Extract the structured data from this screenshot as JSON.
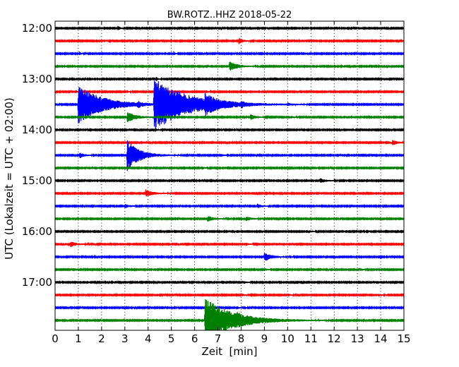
{
  "chart_data": {
    "type": "line",
    "title": "BW.ROTZ..HHZ 2018-05-22",
    "xlabel": "Zeit  [min]",
    "ylabel": "UTC (Lokalzeit = UTC + 02:00)",
    "xlim": [
      0,
      15
    ],
    "xticks": [
      "0",
      "1",
      "2",
      "3",
      "4",
      "5",
      "6",
      "7",
      "8",
      "9",
      "10",
      "11",
      "12",
      "13",
      "14",
      "15"
    ],
    "y_tick_labels": [
      {
        "label": "12:00",
        "row": 0
      },
      {
        "label": "13:00",
        "row": 4
      },
      {
        "label": "14:00",
        "row": 8
      },
      {
        "label": "15:00",
        "row": 12
      },
      {
        "label": "16:00",
        "row": 16
      },
      {
        "label": "17:00",
        "row": 20
      }
    ],
    "grid": true,
    "trace_minutes": 15,
    "colors": [
      "#000000",
      "#ff0000",
      "#0000ff",
      "#008000"
    ],
    "noise_amplitude": 0.7,
    "series": [
      {
        "start": "12:00",
        "events": [
          {
            "t": 2.7,
            "amp": 3,
            "dur": 0.15
          }
        ]
      },
      {
        "start": "12:15",
        "events": [
          {
            "t": 2.1,
            "amp": 2,
            "dur": 0.1
          },
          {
            "t": 7.9,
            "amp": 4,
            "dur": 0.3
          }
        ]
      },
      {
        "start": "12:30",
        "events": [
          {
            "t": 1.05,
            "amp": 3,
            "dur": 0.1
          },
          {
            "t": 5.1,
            "amp": 3,
            "dur": 0.1
          }
        ]
      },
      {
        "start": "12:45",
        "events": [
          {
            "t": 7.5,
            "amp": 7,
            "dur": 0.5
          }
        ]
      },
      {
        "start": "13:00",
        "events": [
          {
            "t": 4.35,
            "amp": 3,
            "dur": 0.1
          }
        ]
      },
      {
        "start": "13:15",
        "events": [
          {
            "t": 0.9,
            "amp": 2,
            "dur": 0.1
          },
          {
            "t": 3.1,
            "amp": 2,
            "dur": 0.1
          },
          {
            "t": 6.5,
            "amp": 2,
            "dur": 0.1
          }
        ]
      },
      {
        "start": "13:30",
        "events": [
          {
            "t": 1.0,
            "amp": 28,
            "dur": 1.6
          },
          {
            "t": 4.25,
            "amp": 38,
            "dur": 2.2
          },
          {
            "t": 6.45,
            "amp": 9,
            "dur": 0.7
          },
          {
            "t": 3.55,
            "amp": 4,
            "dur": 0.2
          },
          {
            "t": 8.0,
            "amp": 3,
            "dur": 0.2
          },
          {
            "t": 10.0,
            "amp": 2,
            "dur": 0.2
          }
        ]
      },
      {
        "start": "13:45",
        "events": [
          {
            "t": 3.1,
            "amp": 7,
            "dur": 0.6
          },
          {
            "t": 8.4,
            "amp": 4,
            "dur": 0.3
          },
          {
            "t": 10.1,
            "amp": 2,
            "dur": 0.2
          }
        ]
      },
      {
        "start": "14:00",
        "events": [
          {
            "t": 4.3,
            "amp": 3,
            "dur": 0.1
          }
        ]
      },
      {
        "start": "14:15",
        "events": [
          {
            "t": 14.5,
            "amp": 4,
            "dur": 0.3
          }
        ]
      },
      {
        "start": "14:30",
        "events": [
          {
            "t": 1.05,
            "amp": 4,
            "dur": 0.3
          },
          {
            "t": 3.1,
            "amp": 22,
            "dur": 0.8
          },
          {
            "t": 7.1,
            "amp": 2,
            "dur": 0.2
          }
        ]
      },
      {
        "start": "14:45",
        "events": [
          {
            "t": 6.3,
            "amp": 2,
            "dur": 0.2
          }
        ]
      },
      {
        "start": "15:00",
        "events": [
          {
            "t": 11.4,
            "amp": 3,
            "dur": 0.4
          }
        ]
      },
      {
        "start": "15:15",
        "events": [
          {
            "t": 3.9,
            "amp": 5,
            "dur": 0.5
          }
        ]
      },
      {
        "start": "15:30",
        "events": [
          {
            "t": 3.0,
            "amp": 3,
            "dur": 0.3
          },
          {
            "t": 8.7,
            "amp": 3,
            "dur": 0.3
          }
        ]
      },
      {
        "start": "15:45",
        "events": [
          {
            "t": 6.55,
            "amp": 4,
            "dur": 0.4
          },
          {
            "t": 8.2,
            "amp": 3,
            "dur": 0.4
          }
        ]
      },
      {
        "start": "16:00",
        "events": [
          {
            "t": 10.9,
            "amp": 2,
            "dur": 0.2
          }
        ]
      },
      {
        "start": "16:15",
        "events": [
          {
            "t": 0.65,
            "amp": 4,
            "dur": 0.4
          },
          {
            "t": 8.2,
            "amp": 2,
            "dur": 0.2
          }
        ]
      },
      {
        "start": "16:30",
        "events": [
          {
            "t": 9.0,
            "amp": 6,
            "dur": 0.5
          }
        ]
      },
      {
        "start": "16:45",
        "events": [
          {
            "t": 9.0,
            "amp": 2,
            "dur": 0.2
          },
          {
            "t": 13.1,
            "amp": 2,
            "dur": 0.2
          }
        ]
      },
      {
        "start": "17:00",
        "events": [
          {
            "t": 8.1,
            "amp": 2,
            "dur": 0.2
          }
        ]
      },
      {
        "start": "17:15",
        "events": [
          {
            "t": 8.0,
            "amp": 2,
            "dur": 0.2
          },
          {
            "t": 10.0,
            "amp": 2,
            "dur": 0.2
          },
          {
            "t": 13.9,
            "amp": 2,
            "dur": 0.2
          }
        ]
      },
      {
        "start": "17:30",
        "events": [
          {
            "t": 7.8,
            "amp": 2,
            "dur": 0.2
          }
        ]
      },
      {
        "start": "17:45",
        "events": [
          {
            "t": 6.45,
            "amp": 32,
            "dur": 1.8
          },
          {
            "t": 7.8,
            "amp": 3,
            "dur": 0.3
          }
        ]
      }
    ]
  }
}
